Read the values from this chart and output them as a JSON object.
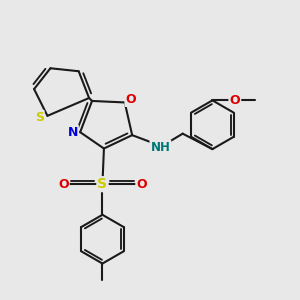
{
  "bg_color": "#e8e8e8",
  "bond_color": "#1a1a1a",
  "S_color": "#cccc00",
  "N_color": "#0000dd",
  "O_color": "#dd0000",
  "NH_color": "#007777",
  "lw": 1.5,
  "xlim": [
    0,
    10
  ],
  "ylim": [
    0,
    10
  ]
}
